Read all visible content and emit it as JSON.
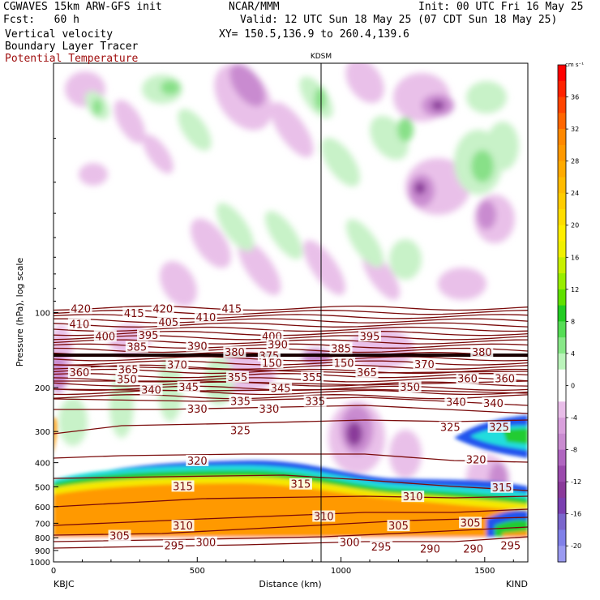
{
  "header": {
    "model": "CGWAVES 15km ARW-GFS init",
    "org": "NCAR/MMM",
    "init": "Init: 00 UTC Fri 16 May 25",
    "fcst": "Fcst:   60 h",
    "valid": "Valid: 12 UTC Sun 18 May 25 (07 CDT Sun 18 May 25)",
    "field1": "Vertical velocity",
    "field2": "Boundary Layer Tracer",
    "field3": "Potential Temperature",
    "xy": "XY= 150.5,136.9 to 260.4,139.6"
  },
  "colors": {
    "theta": "#7a0a0a",
    "tracer_orange": "#ff9900",
    "tracer_yellow": "#f5e800",
    "tracer_green": "#22cc33",
    "tracer_cyan": "#22dddd",
    "tracer_blue": "#2255ee",
    "up_light": "#c8f2c8",
    "up_mid": "#88e088",
    "down_light": "#e8bde8",
    "down_mid": "#c98bd0",
    "down_dark": "#8a3a9a"
  },
  "chart_data": {
    "type": "heatmap",
    "station_marker": "KDSM",
    "station_x_km": 940,
    "xlabel": "Distance (km)",
    "ylabel": "Pressure (hPa), log scale",
    "xlim": [
      0,
      1650
    ],
    "ylim": [
      1000,
      10
    ],
    "x_ticks": [
      0,
      500,
      1000,
      1500
    ],
    "y_ticks": [
      100,
      200,
      300,
      400,
      500,
      600,
      700,
      800,
      900,
      1000
    ],
    "left_endpoint": "KBJC",
    "right_endpoint": "KIND",
    "colorbar": {
      "unit": "cm s⁻¹",
      "ticks": [
        36,
        32,
        28,
        24,
        20,
        16,
        12,
        8,
        4,
        0,
        -4,
        -8,
        -12,
        -16,
        -20
      ],
      "bands": [
        "#ff0000",
        "#ff2200",
        "#ff4400",
        "#ff6600",
        "#ff8800",
        "#ff9900",
        "#ffaa00",
        "#ffbb00",
        "#ffcc00",
        "#ffdd00",
        "#ffee00",
        "#f0f000",
        "#c8f000",
        "#98ee00",
        "#60e000",
        "#22cc22",
        "#55dd55",
        "#88e888",
        "#bbf4bb",
        "#ffffff",
        "#ffffff",
        "#e8bde8",
        "#d9a0dc",
        "#c98bd0",
        "#b066c0",
        "#9a4aac",
        "#8a3a9a",
        "#7a40b0",
        "#7a66cc",
        "#8080e8",
        "#9a9af0"
      ]
    },
    "theta_labels": [
      {
        "x": 95,
        "p": 97,
        "v": "420"
      },
      {
        "x": 380,
        "p": 97,
        "v": "420"
      },
      {
        "x": 280,
        "p": 101,
        "v": "415"
      },
      {
        "x": 620,
        "p": 97,
        "v": "415"
      },
      {
        "x": 90,
        "p": 112,
        "v": "410"
      },
      {
        "x": 530,
        "p": 105,
        "v": "410"
      },
      {
        "x": 400,
        "p": 110,
        "v": "405"
      },
      {
        "x": 180,
        "p": 125,
        "v": "400"
      },
      {
        "x": 760,
        "p": 125,
        "v": "400"
      },
      {
        "x": 330,
        "p": 124,
        "v": "395"
      },
      {
        "x": 1100,
        "p": 125,
        "v": "395"
      },
      {
        "x": 780,
        "p": 135,
        "v": "390"
      },
      {
        "x": 500,
        "p": 137,
        "v": "390"
      },
      {
        "x": 290,
        "p": 138,
        "v": "385"
      },
      {
        "x": 1000,
        "p": 140,
        "v": "385"
      },
      {
        "x": 630,
        "p": 145,
        "v": "380"
      },
      {
        "x": 1490,
        "p": 145,
        "v": "380"
      },
      {
        "x": 750,
        "p": 150,
        "v": "375"
      },
      {
        "x": 1290,
        "p": 162,
        "v": "370"
      },
      {
        "x": 430,
        "p": 163,
        "v": "370"
      },
      {
        "x": 260,
        "p": 170,
        "v": "365"
      },
      {
        "x": 1090,
        "p": 175,
        "v": "365"
      },
      {
        "x": 90,
        "p": 175,
        "v": "360"
      },
      {
        "x": 1440,
        "p": 185,
        "v": "360"
      },
      {
        "x": 1570,
        "p": 185,
        "v": "360"
      },
      {
        "x": 255,
        "p": 186,
        "v": "350"
      },
      {
        "x": 1240,
        "p": 200,
        "v": "350"
      },
      {
        "x": 640,
        "p": 183,
        "v": "355"
      },
      {
        "x": 900,
        "p": 183,
        "v": "355"
      },
      {
        "x": 470,
        "p": 200,
        "v": "345"
      },
      {
        "x": 790,
        "p": 202,
        "v": "345"
      },
      {
        "x": 340,
        "p": 205,
        "v": "340"
      },
      {
        "x": 1400,
        "p": 230,
        "v": "340"
      },
      {
        "x": 1530,
        "p": 232,
        "v": "340"
      },
      {
        "x": 650,
        "p": 228,
        "v": "335"
      },
      {
        "x": 910,
        "p": 228,
        "v": "335"
      },
      {
        "x": 500,
        "p": 245,
        "v": "330"
      },
      {
        "x": 750,
        "p": 245,
        "v": "330"
      },
      {
        "x": 650,
        "p": 298,
        "v": "325"
      },
      {
        "x": 1380,
        "p": 290,
        "v": "325"
      },
      {
        "x": 1550,
        "p": 290,
        "v": "325"
      },
      {
        "x": 500,
        "p": 395,
        "v": "320"
      },
      {
        "x": 1470,
        "p": 390,
        "v": "320"
      },
      {
        "x": 450,
        "p": 500,
        "v": "315"
      },
      {
        "x": 860,
        "p": 490,
        "v": "315"
      },
      {
        "x": 1560,
        "p": 505,
        "v": "315"
      },
      {
        "x": 1250,
        "p": 550,
        "v": "310"
      },
      {
        "x": 940,
        "p": 660,
        "v": "310"
      },
      {
        "x": 450,
        "p": 720,
        "v": "310"
      },
      {
        "x": 1200,
        "p": 720,
        "v": "305"
      },
      {
        "x": 1450,
        "p": 700,
        "v": "305"
      },
      {
        "x": 230,
        "p": 790,
        "v": "305"
      },
      {
        "x": 530,
        "p": 840,
        "v": "300"
      },
      {
        "x": 1030,
        "p": 840,
        "v": "300"
      },
      {
        "x": 420,
        "p": 865,
        "v": "295"
      },
      {
        "x": 1140,
        "p": 875,
        "v": "295"
      },
      {
        "x": 1590,
        "p": 865,
        "v": "295"
      },
      {
        "x": 1310,
        "p": 890,
        "v": "290"
      },
      {
        "x": 1460,
        "p": 890,
        "v": "290"
      },
      {
        "x": 1010,
        "p": 160,
        "v": "150"
      },
      {
        "x": 760,
        "p": 160,
        "v": "150"
      }
    ]
  }
}
